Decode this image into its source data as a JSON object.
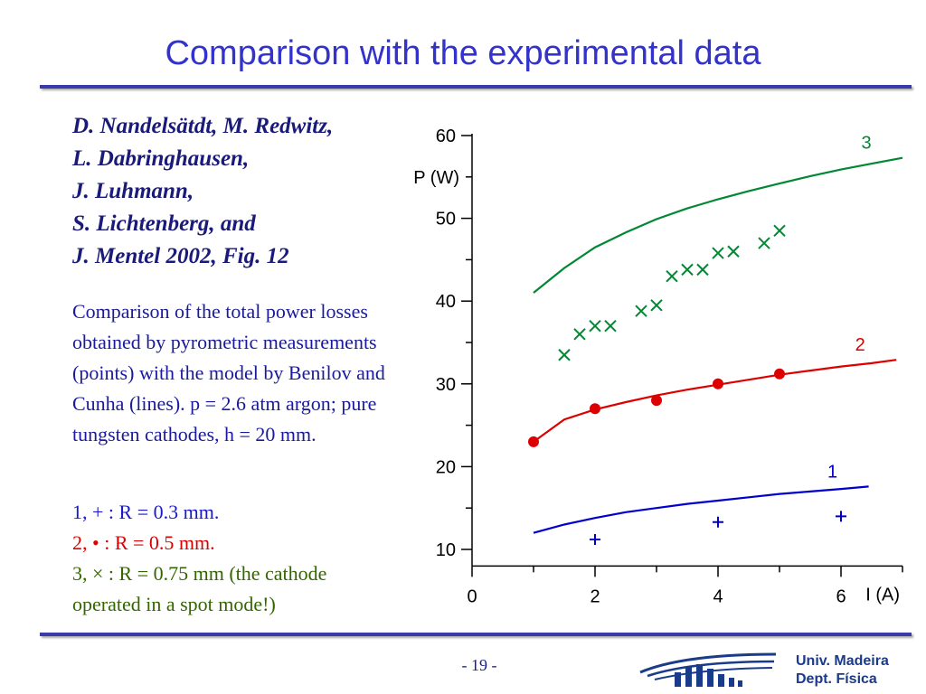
{
  "title": "Comparison with the experimental data",
  "authors": [
    "D. Nandelsätdt, M. Redwitz,",
    "L. Dabringhausen,",
    "J. Luhmann,",
    "S. Lichtenberg, and",
    "J. Mentel 2002, Fig. 12"
  ],
  "description": "Comparison of the total power losses obtained by pyrometric measurements (points) with the model by Benilov and Cunha (lines). p = 2.6 atm argon; pure tungsten cathodes, h = 20 mm.",
  "legend": {
    "line1": "1, + :  R = 0.3 mm.",
    "line2": "2, • :  R = 0.5 mm.",
    "line3a": "3, × :  R = 0.75 mm (the cathode",
    "line3b": "operated in a spot mode!)"
  },
  "footer": {
    "page": "- 19 -",
    "university": "Univ. Madeira",
    "department": "Dept. Física"
  },
  "colors": {
    "series1": "#0000cc",
    "series2": "#dd0000",
    "series3": "#008833",
    "title": "#3333cc"
  },
  "chart_data": {
    "type": "line",
    "xlabel": "I (A)",
    "ylabel": "P (W)",
    "xlim": [
      0,
      7
    ],
    "ylim": [
      8,
      60
    ],
    "xticks": [
      0,
      2,
      4,
      6
    ],
    "yticks": [
      10,
      20,
      30,
      40,
      50,
      60
    ],
    "grid": false,
    "series": [
      {
        "name": "1",
        "color": "#0000cc",
        "marker": "+",
        "line_x": [
          1,
          1.5,
          2,
          2.5,
          3,
          3.5,
          4,
          4.5,
          5,
          5.5,
          6,
          6.45
        ],
        "line_y": [
          12.0,
          13.0,
          13.8,
          14.5,
          15.0,
          15.5,
          15.9,
          16.3,
          16.7,
          17.0,
          17.3,
          17.6
        ],
        "points_x": [
          2,
          4,
          6
        ],
        "points_y": [
          11.2,
          13.3,
          14.0
        ]
      },
      {
        "name": "2",
        "color": "#dd0000",
        "marker": "circle",
        "line_x": [
          1,
          1.5,
          2,
          2.5,
          3,
          3.5,
          4,
          4.5,
          5,
          5.5,
          6,
          6.5,
          6.9
        ],
        "line_y": [
          23.0,
          25.7,
          26.9,
          27.8,
          28.6,
          29.3,
          29.9,
          30.5,
          31.1,
          31.6,
          32.1,
          32.5,
          32.9
        ],
        "points_x": [
          1,
          2,
          3,
          4,
          5
        ],
        "points_y": [
          23.0,
          27.0,
          28.0,
          30.0,
          31.2
        ]
      },
      {
        "name": "3",
        "color": "#008833",
        "marker": "x",
        "line_x": [
          1,
          1.5,
          2,
          2.5,
          3,
          3.5,
          4,
          4.5,
          5,
          5.5,
          6,
          6.5,
          7
        ],
        "line_y": [
          41.0,
          44.0,
          46.5,
          48.3,
          49.9,
          51.2,
          52.3,
          53.3,
          54.2,
          55.1,
          55.9,
          56.6,
          57.3
        ],
        "points_x": [
          1.5,
          1.75,
          2.0,
          2.25,
          2.75,
          3.0,
          3.25,
          3.5,
          3.75,
          4.0,
          4.25,
          4.75,
          5.0
        ],
        "points_y": [
          33.5,
          36.0,
          37.0,
          37.0,
          38.8,
          39.5,
          43.0,
          43.8,
          43.8,
          45.8,
          46.0,
          47.0,
          48.5
        ]
      }
    ]
  }
}
